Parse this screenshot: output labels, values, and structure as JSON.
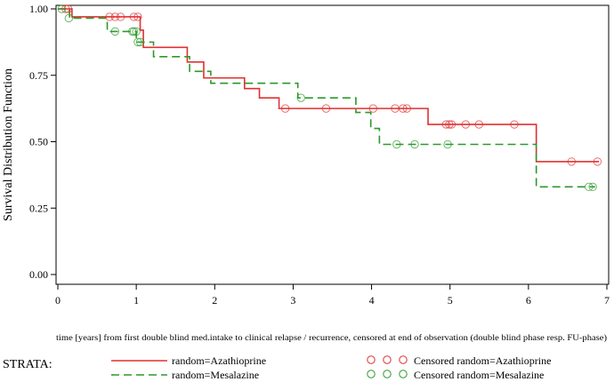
{
  "chart_data": {
    "type": "line",
    "title": "",
    "xlabel": "time [years] from first double blind med.intake to clinical relapse / recurrence, censored at end of observation (double blind phase resp. FU-phase)",
    "ylabel": "Survival Distribution Function",
    "xlim": [
      0,
      7
    ],
    "ylim": [
      0,
      1
    ],
    "x_ticks": [
      "0",
      "1",
      "2",
      "3",
      "4",
      "5",
      "6",
      "7"
    ],
    "x_tick_values": [
      0,
      1,
      2,
      3,
      4,
      5,
      6,
      7
    ],
    "y_ticks": [
      "0.00",
      "0.25",
      "0.50",
      "0.75",
      "1.00"
    ],
    "y_tick_values": [
      0,
      0.25,
      0.5,
      0.75,
      1
    ],
    "grid": false,
    "legend_placement": "bottom",
    "legend_title": "STRATA:",
    "series": [
      {
        "name": "random=Azathioprine",
        "censored_name": "Censored random=Azathioprine",
        "color": "#e03030",
        "dash": "solid",
        "steps": [
          [
            0,
            1.0
          ],
          [
            0.18,
            0.97
          ],
          [
            1.05,
            0.92
          ],
          [
            1.09,
            0.855
          ],
          [
            1.65,
            0.8
          ],
          [
            1.86,
            0.74
          ],
          [
            2.38,
            0.7
          ],
          [
            2.57,
            0.665
          ],
          [
            2.82,
            0.625
          ],
          [
            4.72,
            0.565
          ],
          [
            6.1,
            0.425
          ],
          [
            6.9,
            0.425
          ]
        ],
        "censored": [
          [
            0.1,
            1.0
          ],
          [
            0.13,
            1.0
          ],
          [
            0.66,
            0.97
          ],
          [
            0.73,
            0.97
          ],
          [
            0.8,
            0.97
          ],
          [
            0.97,
            0.97
          ],
          [
            1.02,
            0.97
          ],
          [
            2.9,
            0.625
          ],
          [
            3.42,
            0.625
          ],
          [
            4.02,
            0.625
          ],
          [
            4.3,
            0.625
          ],
          [
            4.4,
            0.625
          ],
          [
            4.45,
            0.625
          ],
          [
            4.95,
            0.565
          ],
          [
            4.99,
            0.565
          ],
          [
            5.02,
            0.565
          ],
          [
            5.2,
            0.565
          ],
          [
            5.37,
            0.565
          ],
          [
            5.82,
            0.565
          ],
          [
            6.55,
            0.425
          ],
          [
            6.88,
            0.425
          ]
        ]
      },
      {
        "name": "random=Mesalazine",
        "censored_name": "Censored random=Mesalazine",
        "color": "#2a9a2a",
        "dash": "dashed",
        "steps": [
          [
            0,
            1.0
          ],
          [
            0.15,
            0.965
          ],
          [
            0.63,
            0.915
          ],
          [
            1.0,
            0.875
          ],
          [
            1.22,
            0.82
          ],
          [
            1.68,
            0.765
          ],
          [
            1.95,
            0.72
          ],
          [
            3.06,
            0.665
          ],
          [
            3.8,
            0.61
          ],
          [
            3.99,
            0.55
          ],
          [
            4.1,
            0.49
          ],
          [
            6.1,
            0.33
          ],
          [
            6.85,
            0.33
          ]
        ],
        "censored": [
          [
            0.05,
            1.0
          ],
          [
            0.14,
            0.965
          ],
          [
            0.73,
            0.915
          ],
          [
            0.95,
            0.915
          ],
          [
            0.97,
            0.915
          ],
          [
            1.0,
            0.915
          ],
          [
            1.02,
            0.875
          ],
          [
            1.05,
            0.875
          ],
          [
            3.1,
            0.665
          ],
          [
            4.32,
            0.49
          ],
          [
            4.55,
            0.49
          ],
          [
            4.97,
            0.49
          ],
          [
            6.77,
            0.33
          ],
          [
            6.82,
            0.33
          ]
        ]
      }
    ]
  }
}
